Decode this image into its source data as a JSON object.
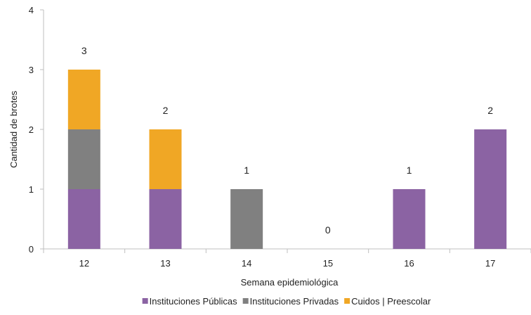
{
  "chart_data": {
    "type": "bar",
    "stacked": true,
    "title": "",
    "xlabel": "Semana epidemiológica",
    "ylabel": "Cantidad de brotes",
    "categories": [
      "12",
      "13",
      "14",
      "15",
      "16",
      "17"
    ],
    "ylim": [
      0,
      4
    ],
    "yticks": [
      "0",
      "1",
      "2",
      "3",
      "4"
    ],
    "series": [
      {
        "name": "Instituciones Públicas",
        "values": [
          1,
          1,
          0,
          0,
          1,
          2
        ],
        "color": "#8B63A3"
      },
      {
        "name": "Instituciones Privadas",
        "values": [
          1,
          0,
          1,
          0,
          0,
          0
        ],
        "color": "#808080"
      },
      {
        "name": "Cuidos | Preescolar",
        "values": [
          1,
          1,
          0,
          0,
          0,
          0
        ],
        "color": "#F0A725"
      }
    ],
    "totals": [
      "3",
      "2",
      "1",
      "0",
      "1",
      "2"
    ],
    "grid": false,
    "legend_position": "bottom"
  }
}
